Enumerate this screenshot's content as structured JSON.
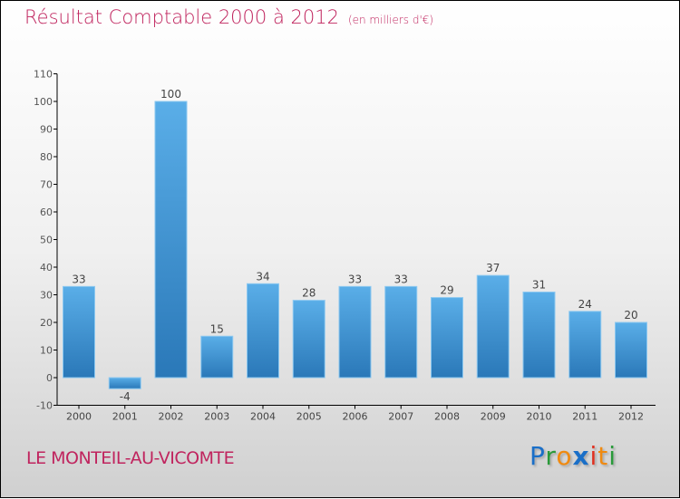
{
  "header": {
    "title": "Résultat Comptable 2000 à 2012",
    "unit": "(en milliers d'€)"
  },
  "footer": {
    "commune": "LE MONTEIL-AU-VICOMTE",
    "logo": "Proxiti"
  },
  "colors": {
    "bar_top": "#5aaee8",
    "bar_bottom": "#2a78b8",
    "title": "#c0245e"
  },
  "chart_data": {
    "type": "bar",
    "title": "Résultat Comptable 2000 à 2012",
    "categories": [
      "2000",
      "2001",
      "2002",
      "2003",
      "2004",
      "2005",
      "2006",
      "2007",
      "2008",
      "2009",
      "2010",
      "2011",
      "2012"
    ],
    "values": [
      33,
      -4,
      100,
      15,
      34,
      28,
      33,
      33,
      29,
      37,
      31,
      24,
      20
    ],
    "ylim": [
      -10,
      110
    ],
    "yticks": [
      -10,
      0,
      10,
      20,
      30,
      40,
      50,
      60,
      70,
      80,
      90,
      100,
      110
    ],
    "xlabel": "",
    "ylabel": "",
    "grid": false
  }
}
